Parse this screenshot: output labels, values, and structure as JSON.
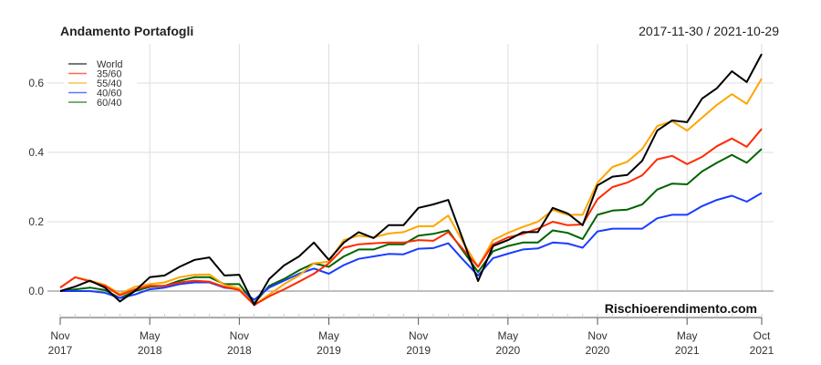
{
  "chart_data": {
    "type": "line",
    "title": "Andamento Portafogli",
    "date_range": "2017-11-30 / 2021-10-29",
    "watermark": "Rischioerendimento.com",
    "xlabel": "",
    "ylabel": "",
    "ylim": [
      -0.07,
      0.7
    ],
    "yticks": [
      "0.0",
      "0.2",
      "0.4",
      "0.6"
    ],
    "ytick_values": [
      0,
      0.2,
      0.4,
      0.6
    ],
    "xticks": [
      {
        "m": "Nov",
        "y": "2017",
        "i": 0
      },
      {
        "m": "May",
        "y": "2018",
        "i": 6
      },
      {
        "m": "Nov",
        "y": "2018",
        "i": 12
      },
      {
        "m": "May",
        "y": "2019",
        "i": 18
      },
      {
        "m": "Nov",
        "y": "2019",
        "i": 24
      },
      {
        "m": "May",
        "y": "2020",
        "i": 30
      },
      {
        "m": "Nov",
        "y": "2020",
        "i": 36
      },
      {
        "m": "May",
        "y": "2021",
        "i": 42
      },
      {
        "m": "Oct",
        "y": "2021",
        "i": 47
      }
    ],
    "x_start": "2017-11",
    "x_end": "2021-10",
    "frequency": "monthly",
    "grid": true,
    "legend_position": "top-left",
    "series": [
      {
        "name": "World",
        "color": "#000000",
        "values": [
          0,
          0.013,
          0.03,
          0.01,
          -0.03,
          0.0,
          0.04,
          0.045,
          0.07,
          0.09,
          0.097,
          0.045,
          0.047,
          -0.04,
          0.035,
          0.074,
          0.1,
          0.14,
          0.09,
          0.14,
          0.17,
          0.153,
          0.19,
          0.19,
          0.24,
          0.25,
          0.263,
          0.146,
          0.029,
          0.13,
          0.147,
          0.17,
          0.17,
          0.24,
          0.224,
          0.19,
          0.305,
          0.33,
          0.335,
          0.376,
          0.463,
          0.492,
          0.487,
          0.555,
          0.585,
          0.634,
          0.603,
          0.684
        ]
      },
      {
        "name": "35/60",
        "color": "#ff2a00",
        "values": [
          0.01,
          0.04,
          0.028,
          0.015,
          -0.012,
          0.005,
          0.015,
          0.015,
          0.025,
          0.03,
          0.027,
          0.012,
          0.003,
          -0.04,
          -0.015,
          0.005,
          0.027,
          0.05,
          0.08,
          0.125,
          0.135,
          0.138,
          0.14,
          0.14,
          0.147,
          0.145,
          0.17,
          0.12,
          0.07,
          0.135,
          0.155,
          0.165,
          0.18,
          0.2,
          0.19,
          0.192,
          0.265,
          0.3,
          0.313,
          0.334,
          0.38,
          0.39,
          0.366,
          0.387,
          0.418,
          0.44,
          0.416,
          0.468
        ]
      },
      {
        "name": "55/40",
        "color": "#ffa500",
        "values": [
          0.01,
          0.04,
          0.03,
          0.018,
          -0.008,
          0.012,
          0.02,
          0.025,
          0.04,
          0.047,
          0.048,
          0.018,
          0.008,
          -0.04,
          -0.01,
          0.02,
          0.045,
          0.08,
          0.085,
          0.147,
          0.16,
          0.155,
          0.166,
          0.17,
          0.187,
          0.187,
          0.218,
          0.14,
          0.07,
          0.147,
          0.168,
          0.185,
          0.2,
          0.234,
          0.22,
          0.22,
          0.313,
          0.358,
          0.373,
          0.41,
          0.476,
          0.49,
          0.463,
          0.5,
          0.537,
          0.568,
          0.54,
          0.613
        ]
      },
      {
        "name": "40/60",
        "color": "#1a3cff",
        "values": [
          0,
          0,
          0,
          -0.005,
          -0.02,
          -0.01,
          0.005,
          0.01,
          0.02,
          0.025,
          0.025,
          0.01,
          0.005,
          -0.025,
          0.01,
          0.03,
          0.05,
          0.065,
          0.05,
          0.075,
          0.093,
          0.1,
          0.107,
          0.106,
          0.122,
          0.124,
          0.138,
          0.09,
          0.045,
          0.095,
          0.108,
          0.12,
          0.123,
          0.14,
          0.137,
          0.125,
          0.172,
          0.18,
          0.18,
          0.18,
          0.21,
          0.22,
          0.22,
          0.245,
          0.263,
          0.275,
          0.258,
          0.283
        ]
      },
      {
        "name": "60/40",
        "color": "#006400",
        "values": [
          0,
          0.005,
          0.01,
          0.003,
          -0.02,
          0,
          0.012,
          0.015,
          0.03,
          0.04,
          0.04,
          0.02,
          0.02,
          -0.035,
          0.015,
          0.035,
          0.06,
          0.08,
          0.07,
          0.1,
          0.12,
          0.12,
          0.135,
          0.135,
          0.16,
          0.165,
          0.175,
          0.115,
          0.055,
          0.115,
          0.13,
          0.14,
          0.14,
          0.175,
          0.168,
          0.15,
          0.22,
          0.232,
          0.235,
          0.25,
          0.293,
          0.31,
          0.308,
          0.345,
          0.37,
          0.393,
          0.37,
          0.41
        ]
      }
    ]
  }
}
